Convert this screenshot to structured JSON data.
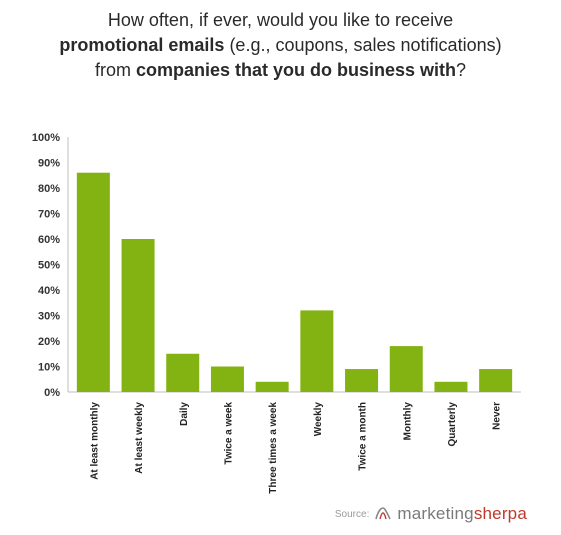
{
  "title": {
    "line1": "How often, if ever, would you like to receive",
    "line2_bold": "promotional emails",
    "line2_rest": " (e.g., coupons, sales notifications)",
    "line3_pre": "from ",
    "line3_bold": "companies that you do business with",
    "line3_post": "?"
  },
  "chart_data": {
    "type": "bar",
    "categories": [
      "At least monthly",
      "At least weekly",
      "Daily",
      "Twice a week",
      "Three times a week",
      "Weekly",
      "Twice a month",
      "Monthly",
      "Quarterly",
      "Never"
    ],
    "values": [
      86,
      60,
      15,
      10,
      4,
      32,
      9,
      18,
      4,
      9
    ],
    "ylim": [
      0,
      100
    ],
    "yticks": [
      "0%",
      "10%",
      "20%",
      "30%",
      "40%",
      "50%",
      "60%",
      "70%",
      "80%",
      "90%",
      "100%"
    ],
    "bar_color": "#83b312",
    "grid": false
  },
  "source": {
    "label": "Source:",
    "brand_a": "marketing",
    "brand_b": "sherpa",
    "brand_color": "#c0392b"
  }
}
